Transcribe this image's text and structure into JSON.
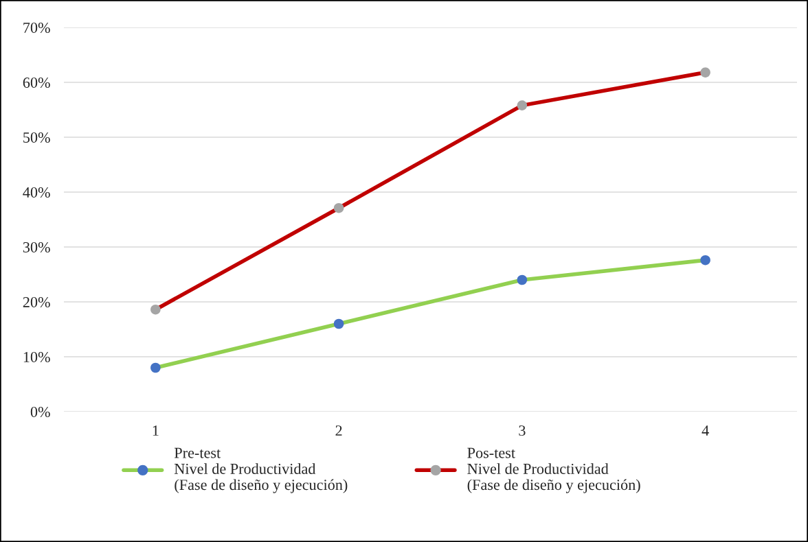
{
  "chart_data": {
    "type": "line",
    "categories": [
      "1",
      "2",
      "3",
      "4"
    ],
    "series": [
      {
        "name": "Pre-test\nNivel de Productividad\n(Fase de diseño y ejecución)",
        "color": "#92d050",
        "colors": [
          "#4472c4",
          "#4472c4",
          "#4472c4",
          "#4472c4"
        ],
        "values": [
          8,
          16,
          24,
          27.6
        ]
      },
      {
        "name": "Pos-test\nNivel de Productividad\n(Fase de diseño y ejecución)",
        "color": "#c00000",
        "colors": [
          "#a5a5a5",
          "#a5a5a5",
          "#a5a5a5",
          "#a5a5a5"
        ],
        "values": [
          18.6,
          37.1,
          55.8,
          61.8
        ]
      }
    ],
    "ylim": [
      0,
      70
    ],
    "yticks": [
      {
        "value": 0,
        "label": "0%"
      },
      {
        "value": 10,
        "label": "10%"
      },
      {
        "value": 20,
        "label": "20%"
      },
      {
        "value": 30,
        "label": "30%"
      },
      {
        "value": 40,
        "label": "40%"
      },
      {
        "value": 50,
        "label": "50%"
      },
      {
        "value": 60,
        "label": "60%"
      },
      {
        "value": 70,
        "label": "70%"
      }
    ],
    "grid": "y",
    "legend": "bottom",
    "marker": "circle",
    "line_style": "solid"
  }
}
